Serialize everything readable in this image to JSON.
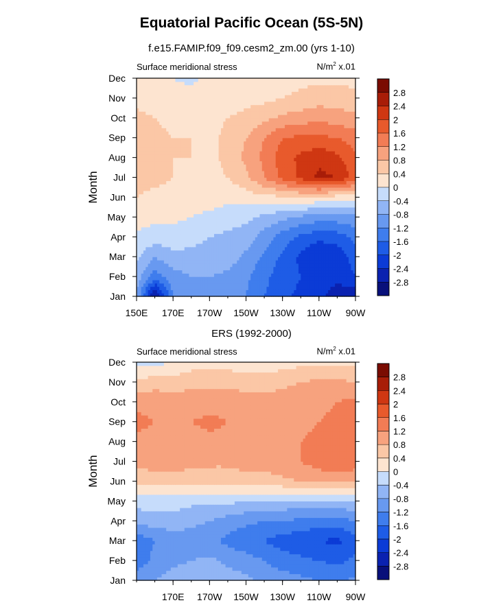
{
  "page": {
    "title": "Equatorial Pacific Ocean (5S-5N)",
    "subtitle": "f.e15.FAMIP.f09_f09.cesm2_zm.00 (yrs 1-10)"
  },
  "colors": {
    "levels": [
      -2.8,
      -2.4,
      -2,
      -1.6,
      -1.2,
      -0.8,
      -0.4,
      0,
      0.4,
      0.8,
      1.2,
      1.6,
      2,
      2.4,
      2.8
    ],
    "palette": [
      "#08107a",
      "#0a22b0",
      "#0b3bd6",
      "#1e5ce6",
      "#3f7ded",
      "#6899f0",
      "#91b5f5",
      "#c6dcfb",
      "#fde4d0",
      "#fbc7a6",
      "#f7a27e",
      "#f27c55",
      "#e85a2c",
      "#cf3712",
      "#a81d08",
      "#7a0c02"
    ]
  },
  "chart_data": [
    {
      "type": "heatmap",
      "panel_title": "",
      "left_label": "Surface meridional stress",
      "units_label": "N/m",
      "units_sup": "2",
      "units_suffix": " x.01",
      "ylabel": "Month",
      "x_ticks": [
        "150E",
        "170E",
        "170W",
        "150W",
        "130W",
        "110W",
        "90W"
      ],
      "y_ticks": [
        "Jan",
        "Feb",
        "Mar",
        "Apr",
        "May",
        "Jun",
        "Jul",
        "Aug",
        "Sep",
        "Oct",
        "Nov",
        "Dec"
      ],
      "colorbar_labels": [
        "2.8",
        "2.4",
        "2",
        "1.6",
        "1.2",
        "0.8",
        "0.4",
        "0",
        "-0.4",
        "-0.8",
        "-1.2",
        "-1.6",
        "-2",
        "-2.4",
        "-2.8"
      ],
      "lon": [
        150,
        160,
        170,
        180,
        190,
        200,
        210,
        220,
        230,
        240,
        250,
        260,
        270
      ],
      "months": [
        "Jan",
        "Feb",
        "Mar",
        "Apr",
        "May",
        "Jun",
        "Jul",
        "Aug",
        "Sep",
        "Oct",
        "Nov",
        "Dec"
      ],
      "values": [
        [
          -0.8,
          -3.0,
          -1.2,
          -0.8,
          -0.9,
          -1.0,
          -1.2,
          -1.6,
          -1.9,
          -2.1,
          -2.3,
          -2.6,
          -2.7
        ],
        [
          -0.6,
          -1.4,
          -1.0,
          -0.8,
          -0.8,
          -0.9,
          -1.1,
          -1.5,
          -1.8,
          -2.0,
          -2.2,
          -2.3,
          -2.0
        ],
        [
          -0.3,
          -0.8,
          -0.5,
          -0.5,
          -0.5,
          -0.6,
          -0.9,
          -1.3,
          -1.7,
          -2.1,
          -2.4,
          -2.3,
          -1.8
        ],
        [
          -0.1,
          -0.2,
          -0.2,
          -0.3,
          -0.4,
          -0.5,
          -0.6,
          -1.0,
          -1.4,
          -1.7,
          -1.9,
          -1.8,
          -1.5
        ],
        [
          0.2,
          0.1,
          0.1,
          0.0,
          -0.1,
          -0.2,
          -0.3,
          -0.5,
          -0.7,
          -0.9,
          -1.0,
          -1.0,
          -0.9
        ],
        [
          0.4,
          0.3,
          0.3,
          0.2,
          0.2,
          0.1,
          0.2,
          0.3,
          0.3,
          0.4,
          0.3,
          0.2,
          0.1
        ],
        [
          0.5,
          0.5,
          0.4,
          0.3,
          0.3,
          0.4,
          0.7,
          1.2,
          1.7,
          2.1,
          2.5,
          2.4,
          1.8
        ],
        [
          0.5,
          0.5,
          0.4,
          0.4,
          0.3,
          0.5,
          0.9,
          1.3,
          1.8,
          2.1,
          2.3,
          2.1,
          1.7
        ],
        [
          0.5,
          0.5,
          0.4,
          0.4,
          0.3,
          0.5,
          0.8,
          1.2,
          1.6,
          1.7,
          1.7,
          1.6,
          1.4
        ],
        [
          0.5,
          0.4,
          0.3,
          0.3,
          0.3,
          0.4,
          0.5,
          0.7,
          0.9,
          1.0,
          1.1,
          1.0,
          0.9
        ],
        [
          0.3,
          0.2,
          0.2,
          0.2,
          0.2,
          0.2,
          0.3,
          0.3,
          0.4,
          0.5,
          0.6,
          0.6,
          0.5
        ],
        [
          0.0,
          0.1,
          0.0,
          -0.1,
          0.1,
          0.1,
          0.1,
          0.2,
          0.2,
          0.3,
          0.3,
          0.3,
          0.3
        ]
      ]
    },
    {
      "type": "heatmap",
      "panel_title": "ERS (1992-2000)",
      "left_label": "Surface meridional stress",
      "units_label": "N/m",
      "units_sup": "2",
      "units_suffix": " x.01",
      "ylabel": "Month",
      "x_ticks": [
        "170E",
        "170W",
        "150W",
        "130W",
        "110W",
        "90W"
      ],
      "y_ticks": [
        "Jan",
        "Feb",
        "Mar",
        "Apr",
        "May",
        "Jun",
        "Jul",
        "Aug",
        "Sep",
        "Oct",
        "Nov",
        "Dec"
      ],
      "colorbar_labels": [
        "2.8",
        "2.4",
        "2",
        "1.6",
        "1.2",
        "0.8",
        "0.4",
        "0",
        "-0.4",
        "-0.8",
        "-1.2",
        "-1.6",
        "-2",
        "-2.4",
        "-2.8"
      ],
      "lon": [
        150,
        160,
        170,
        180,
        190,
        200,
        210,
        220,
        230,
        240,
        250,
        260,
        270
      ],
      "months": [
        "Jan",
        "Feb",
        "Mar",
        "Apr",
        "May",
        "Jun",
        "Jul",
        "Aug",
        "Sep",
        "Oct",
        "Nov",
        "Dec"
      ],
      "values": [
        [
          -1.0,
          -0.8,
          -0.6,
          -0.5,
          -0.4,
          -0.6,
          -0.7,
          -0.9,
          -1.0,
          -1.1,
          -1.2,
          -1.3,
          -1.1
        ],
        [
          -1.4,
          -1.1,
          -0.9,
          -0.8,
          -0.7,
          -0.9,
          -1.0,
          -1.2,
          -1.4,
          -1.5,
          -1.6,
          -1.7,
          -1.5
        ],
        [
          -1.5,
          -1.2,
          -1.0,
          -1.0,
          -1.1,
          -1.3,
          -1.5,
          -1.6,
          -1.8,
          -1.9,
          -2.0,
          -2.1,
          -1.8
        ],
        [
          -0.7,
          -0.6,
          -0.6,
          -0.7,
          -0.8,
          -1.0,
          -1.1,
          -1.2,
          -1.2,
          -1.3,
          -1.4,
          -1.4,
          -1.2
        ],
        [
          -0.2,
          -0.2,
          -0.2,
          -0.3,
          -0.3,
          -0.3,
          -0.4,
          -0.4,
          -0.5,
          -0.5,
          -0.5,
          -0.5,
          -0.4
        ],
        [
          0.5,
          0.6,
          0.6,
          0.6,
          0.5,
          0.5,
          0.6,
          0.6,
          0.7,
          0.8,
          0.9,
          0.9,
          0.9
        ],
        [
          0.9,
          1.0,
          1.0,
          0.9,
          0.9,
          0.9,
          1.0,
          1.0,
          1.1,
          1.2,
          1.4,
          1.5,
          1.4
        ],
        [
          1.1,
          1.1,
          1.0,
          1.0,
          1.1,
          1.1,
          1.1,
          1.1,
          1.1,
          1.2,
          1.3,
          1.4,
          1.4
        ],
        [
          1.3,
          1.2,
          1.1,
          1.2,
          1.3,
          1.2,
          1.2,
          1.2,
          1.2,
          1.1,
          1.2,
          1.3,
          1.5
        ],
        [
          1.1,
          1.1,
          1.0,
          1.0,
          1.0,
          1.1,
          1.0,
          1.0,
          1.0,
          1.1,
          1.1,
          1.2,
          1.3
        ],
        [
          0.5,
          0.6,
          0.6,
          0.7,
          0.7,
          0.7,
          0.6,
          0.6,
          0.7,
          0.8,
          0.9,
          0.9,
          0.8
        ],
        [
          -0.1,
          -0.1,
          0.0,
          0.2,
          0.2,
          0.2,
          0.2,
          0.2,
          0.2,
          0.3,
          0.3,
          0.3,
          0.3
        ]
      ]
    }
  ]
}
